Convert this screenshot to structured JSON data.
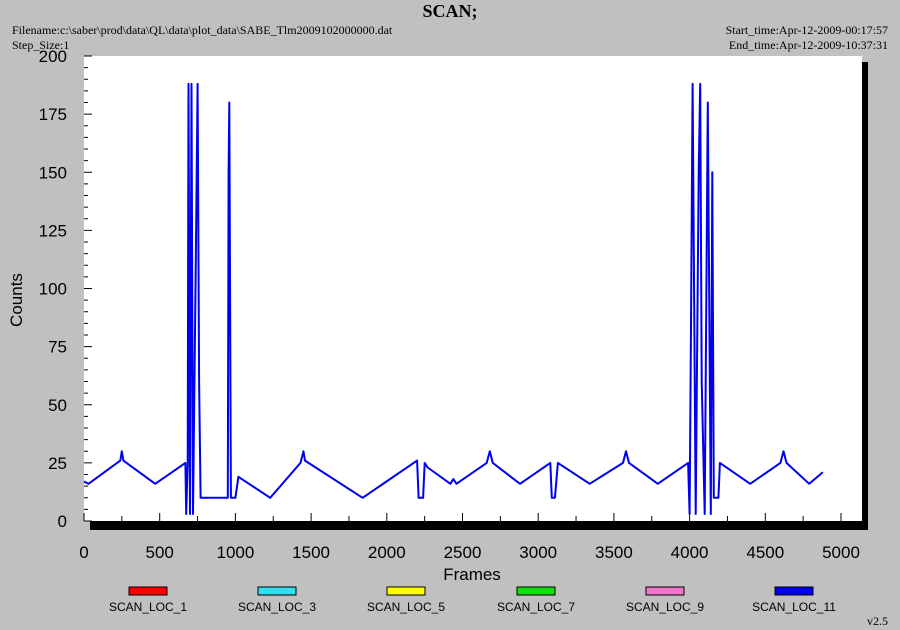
{
  "header": {
    "title": "SCAN;",
    "filename": "Filename:c:\\saber\\prod\\data\\QL\\data\\plot_data\\SABE_Tlm2009102000000.dat",
    "step_size": "Step_Size:1",
    "start_time": "Start_time:Apr-12-2009-00:17:57",
    "end_time": "End_time:Apr-12-2009-10:37:31"
  },
  "footer": {
    "version": "v2.5"
  },
  "colors": {
    "background": "#c0c0c0",
    "plot_bg": "#ffffff",
    "shadow": "#000000"
  },
  "chart_data": {
    "type": "line",
    "title": "SCAN;",
    "xlabel": "Frames",
    "ylabel": "Counts",
    "xlim": [
      0,
      5000
    ],
    "ylim": [
      0,
      200
    ],
    "x_ticks": [
      0,
      500,
      1000,
      1500,
      2000,
      2500,
      3000,
      3500,
      4000,
      4500,
      5000
    ],
    "y_ticks": [
      0,
      25,
      50,
      75,
      100,
      125,
      150,
      175,
      200
    ],
    "grid": false,
    "legend_position": "bottom",
    "legend": [
      {
        "name": "SCAN_LOC_1",
        "color": "#ff0000"
      },
      {
        "name": "SCAN_LOC_3",
        "color": "#33ddee"
      },
      {
        "name": "SCAN_LOC_5",
        "color": "#ffff00"
      },
      {
        "name": "SCAN_LOC_7",
        "color": "#11dd11"
      },
      {
        "name": "SCAN_LOC_9",
        "color": "#ee77cc"
      },
      {
        "name": "SCAN_LOC_11",
        "color": "#0000ee"
      }
    ],
    "series": [
      {
        "name": "SCAN_LOC_11",
        "color": "#0000ee",
        "points": [
          [
            0,
            17
          ],
          [
            30,
            16
          ],
          [
            240,
            26
          ],
          [
            250,
            30
          ],
          [
            260,
            26
          ],
          [
            470,
            16
          ],
          [
            670,
            25
          ],
          [
            675,
            3
          ],
          [
            685,
            25
          ],
          [
            690,
            188
          ],
          [
            700,
            3
          ],
          [
            710,
            188
          ],
          [
            720,
            3
          ],
          [
            740,
            120
          ],
          [
            750,
            188
          ],
          [
            760,
            60
          ],
          [
            770,
            10
          ],
          [
            950,
            10
          ],
          [
            955,
            150
          ],
          [
            960,
            180
          ],
          [
            970,
            10
          ],
          [
            1000,
            10
          ],
          [
            1020,
            19
          ],
          [
            1230,
            10
          ],
          [
            1430,
            25
          ],
          [
            1450,
            30
          ],
          [
            1460,
            26
          ],
          [
            1840,
            10
          ],
          [
            2200,
            26
          ],
          [
            2210,
            10
          ],
          [
            2240,
            10
          ],
          [
            2250,
            25
          ],
          [
            2270,
            23
          ],
          [
            2420,
            16
          ],
          [
            2440,
            18
          ],
          [
            2460,
            16
          ],
          [
            2660,
            25
          ],
          [
            2680,
            30
          ],
          [
            2700,
            25
          ],
          [
            2880,
            16
          ],
          [
            3080,
            25
          ],
          [
            3090,
            10
          ],
          [
            3110,
            10
          ],
          [
            3130,
            25
          ],
          [
            3340,
            16
          ],
          [
            3560,
            25
          ],
          [
            3580,
            30
          ],
          [
            3600,
            25
          ],
          [
            3790,
            16
          ],
          [
            3990,
            25
          ],
          [
            4000,
            3
          ],
          [
            4010,
            90
          ],
          [
            4020,
            188
          ],
          [
            4040,
            3
          ],
          [
            4060,
            150
          ],
          [
            4070,
            188
          ],
          [
            4080,
            60
          ],
          [
            4100,
            3
          ],
          [
            4120,
            180
          ],
          [
            4140,
            3
          ],
          [
            4150,
            150
          ],
          [
            4160,
            10
          ],
          [
            4190,
            10
          ],
          [
            4200,
            25
          ],
          [
            4400,
            16
          ],
          [
            4600,
            25
          ],
          [
            4620,
            30
          ],
          [
            4640,
            25
          ],
          [
            4790,
            16
          ],
          [
            4880,
            21
          ]
        ]
      }
    ]
  }
}
